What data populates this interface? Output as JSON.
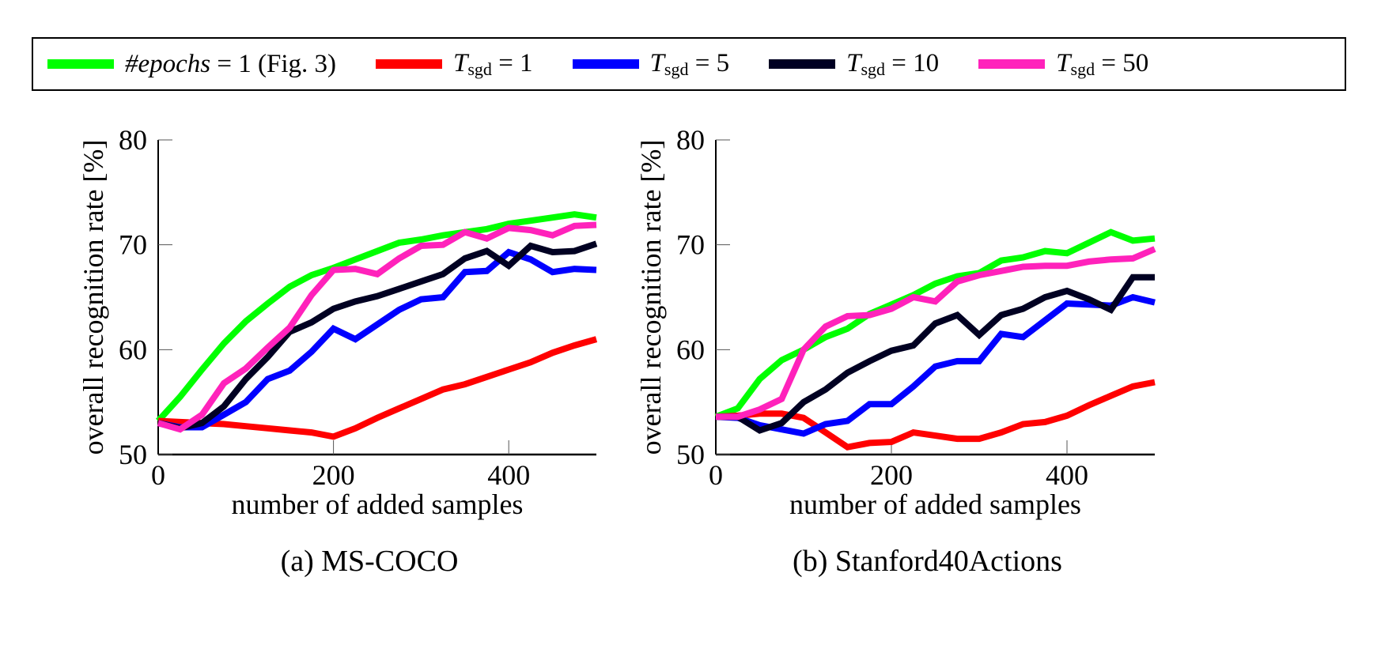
{
  "legend": [
    {
      "id": "epochs1",
      "math_main": "#epochs",
      "math_sub": "",
      "rhs": "= 1 (Fig. 3)",
      "color": "#00ff00"
    },
    {
      "id": "tsgd1",
      "math_main": "T",
      "math_sub": "sgd",
      "rhs": "= 1",
      "color": "#ff0000"
    },
    {
      "id": "tsgd5",
      "math_main": "T",
      "math_sub": "sgd",
      "rhs": "= 5",
      "color": "#0000ff"
    },
    {
      "id": "tsgd10",
      "math_main": "T",
      "math_sub": "sgd",
      "rhs": "= 10",
      "color": "#000022"
    },
    {
      "id": "tsgd50",
      "math_main": "T",
      "math_sub": "sgd",
      "rhs": "= 50",
      "color": "#ff22bb"
    }
  ],
  "chart_data": [
    {
      "type": "line",
      "title": "(a) MS-COCO",
      "xlabel": "number of added samples",
      "ylabel": "overall recognition rate [%]",
      "xlim": [
        0,
        500
      ],
      "ylim": [
        50,
        80
      ],
      "xticks": [
        0,
        200,
        400
      ],
      "yticks": [
        50,
        60,
        70,
        80
      ],
      "grid": false,
      "legend_position": "top (shared, boxed)",
      "x": [
        0,
        25,
        50,
        75,
        100,
        125,
        150,
        175,
        200,
        225,
        250,
        275,
        300,
        325,
        350,
        375,
        400,
        425,
        450,
        475,
        500
      ],
      "series": [
        {
          "name": "#epochs = 1 (Fig. 3)",
          "color": "#00ff00",
          "values": [
            53.2,
            55.5,
            58.1,
            60.6,
            62.7,
            64.4,
            66.0,
            67.1,
            67.8,
            68.6,
            69.4,
            70.2,
            70.5,
            70.9,
            71.2,
            71.5,
            72.0,
            72.3,
            72.6,
            72.9,
            72.6
          ]
        },
        {
          "name": "T_sgd = 1",
          "color": "#ff0000",
          "values": [
            53.2,
            53.1,
            53.0,
            52.9,
            52.7,
            52.5,
            52.3,
            52.1,
            51.7,
            52.5,
            53.5,
            54.4,
            55.3,
            56.2,
            56.7,
            57.4,
            58.1,
            58.8,
            59.7,
            60.4,
            61.0
          ]
        },
        {
          "name": "T_sgd = 5",
          "color": "#0000ff",
          "values": [
            53.0,
            52.6,
            52.6,
            53.8,
            55.0,
            57.2,
            58.0,
            59.8,
            62.0,
            61.0,
            62.4,
            63.8,
            64.8,
            65.0,
            67.4,
            67.5,
            69.3,
            68.6,
            67.4,
            67.7,
            67.6
          ]
        },
        {
          "name": "T_sgd = 10",
          "color": "#000022",
          "values": [
            53.0,
            52.5,
            53.0,
            54.6,
            57.2,
            59.3,
            61.7,
            62.6,
            63.9,
            64.6,
            65.1,
            65.8,
            66.5,
            67.2,
            68.7,
            69.4,
            68.0,
            69.9,
            69.3,
            69.4,
            70.1
          ]
        },
        {
          "name": "T_sgd = 50",
          "color": "#ff22bb",
          "values": [
            53.0,
            52.4,
            53.8,
            56.8,
            58.2,
            60.2,
            62.1,
            65.2,
            67.6,
            67.7,
            67.2,
            68.7,
            69.9,
            70.0,
            71.2,
            70.6,
            71.6,
            71.4,
            70.9,
            71.8,
            71.9
          ]
        }
      ]
    },
    {
      "type": "line",
      "title": "(b) Stanford40Actions",
      "xlabel": "number of added samples",
      "ylabel": "overall recognition rate [%]",
      "xlim": [
        0,
        500
      ],
      "ylim": [
        50,
        80
      ],
      "xticks": [
        0,
        200,
        400
      ],
      "yticks": [
        50,
        60,
        70,
        80
      ],
      "grid": false,
      "legend_position": "top (shared, boxed)",
      "x": [
        0,
        25,
        50,
        75,
        100,
        125,
        150,
        175,
        200,
        225,
        250,
        275,
        300,
        325,
        350,
        375,
        400,
        425,
        450,
        475,
        500
      ],
      "series": [
        {
          "name": "#epochs = 1 (Fig. 3)",
          "color": "#00ff00",
          "values": [
            53.6,
            54.4,
            57.2,
            59.0,
            60.0,
            61.2,
            62.0,
            63.4,
            64.3,
            65.2,
            66.3,
            67.0,
            67.3,
            68.5,
            68.8,
            69.4,
            69.2,
            70.2,
            71.2,
            70.4,
            70.6
          ]
        },
        {
          "name": "T_sgd = 1",
          "color": "#ff0000",
          "values": [
            53.6,
            53.7,
            53.9,
            53.9,
            53.5,
            52.1,
            50.7,
            51.1,
            51.2,
            52.1,
            51.8,
            51.5,
            51.5,
            52.1,
            52.9,
            53.1,
            53.7,
            54.7,
            55.6,
            56.5,
            56.9
          ]
        },
        {
          "name": "T_sgd = 5",
          "color": "#0000ff",
          "values": [
            53.6,
            53.5,
            52.8,
            52.4,
            52.0,
            52.9,
            53.2,
            54.8,
            54.8,
            56.5,
            58.4,
            58.9,
            58.9,
            61.5,
            61.2,
            62.8,
            64.4,
            64.3,
            64.2,
            65.0,
            64.5
          ]
        },
        {
          "name": "T_sgd = 10",
          "color": "#000022",
          "values": [
            53.6,
            53.6,
            52.3,
            53.0,
            55.0,
            56.2,
            57.8,
            58.9,
            59.9,
            60.4,
            62.5,
            63.3,
            61.4,
            63.3,
            63.9,
            65.0,
            65.6,
            64.8,
            63.8,
            66.9,
            66.9
          ]
        },
        {
          "name": "T_sgd = 50",
          "color": "#ff22bb",
          "values": [
            53.6,
            53.6,
            54.3,
            55.3,
            60.0,
            62.2,
            63.2,
            63.3,
            63.9,
            65.0,
            64.6,
            66.5,
            67.1,
            67.5,
            67.9,
            68.0,
            68.0,
            68.4,
            68.6,
            68.7,
            69.6
          ]
        }
      ]
    }
  ]
}
